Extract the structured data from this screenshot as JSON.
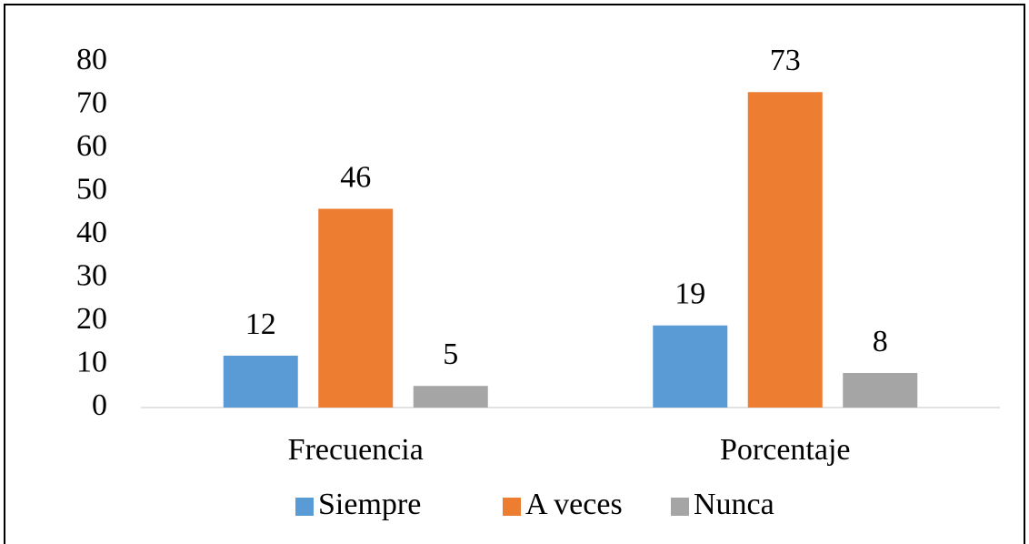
{
  "chart_data": {
    "type": "bar",
    "categories": [
      "Frecuencia",
      "Porcentaje"
    ],
    "series": [
      {
        "name": "Siempre",
        "color": "#5b9bd5",
        "values": [
          12,
          19
        ]
      },
      {
        "name": "A veces",
        "color": "#ed7d31",
        "values": [
          46,
          73
        ]
      },
      {
        "name": "Nunca",
        "color": "#a5a5a5",
        "values": [
          5,
          8
        ]
      }
    ],
    "ylim": [
      0,
      80
    ],
    "yticks": [
      0,
      10,
      20,
      30,
      40,
      50,
      60,
      70,
      80
    ],
    "grid": false,
    "legend": "bottom",
    "data_labels": true
  }
}
